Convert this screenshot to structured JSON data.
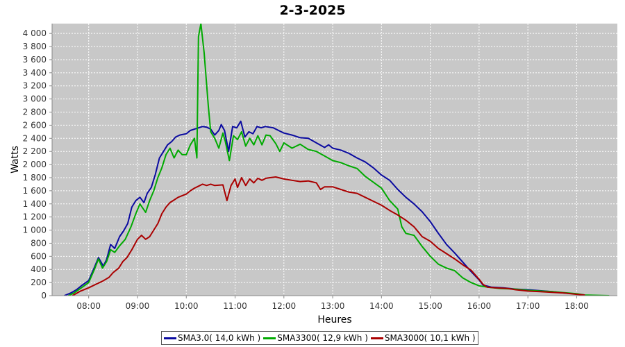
{
  "chart_data": {
    "type": "line",
    "title": "2-3-2025",
    "xlabel": "Heures",
    "ylabel": "Watts",
    "ylim": [
      0,
      4150
    ],
    "xlim": [
      "07:15",
      "18:50"
    ],
    "grid": true,
    "legend_position": "bottom",
    "x_ticks": [
      "08:00",
      "09:00",
      "10:00",
      "11:00",
      "12:00",
      "13:00",
      "14:00",
      "15:00",
      "16:00",
      "17:00",
      "18:00"
    ],
    "y_ticks": [
      "0",
      "200",
      "400",
      "600",
      "800",
      "1 000",
      "1 200",
      "1 400",
      "1 600",
      "1 800",
      "2 000",
      "2 200",
      "2 400",
      "2 600",
      "2 800",
      "3 000",
      "3 200",
      "3 400",
      "3 600",
      "3 800",
      "4 000"
    ],
    "colors": {
      "plot_background": "#c8c8c8",
      "grid": "#ffffff"
    },
    "series": [
      {
        "name": "SMA3.0( 14,0 kWh )",
        "color": "#0a0aa0",
        "points": [
          [
            "07:30",
            0
          ],
          [
            "07:38",
            40
          ],
          [
            "07:45",
            90
          ],
          [
            "07:52",
            160
          ],
          [
            "08:00",
            230
          ],
          [
            "08:07",
            430
          ],
          [
            "08:12",
            580
          ],
          [
            "08:18",
            450
          ],
          [
            "08:22",
            550
          ],
          [
            "08:27",
            780
          ],
          [
            "08:32",
            720
          ],
          [
            "08:38",
            900
          ],
          [
            "08:43",
            990
          ],
          [
            "08:48",
            1100
          ],
          [
            "08:53",
            1350
          ],
          [
            "08:58",
            1450
          ],
          [
            "09:03",
            1500
          ],
          [
            "09:08",
            1420
          ],
          [
            "09:12",
            1560
          ],
          [
            "09:17",
            1650
          ],
          [
            "09:22",
            1850
          ],
          [
            "09:27",
            2100
          ],
          [
            "09:32",
            2200
          ],
          [
            "09:37",
            2300
          ],
          [
            "09:42",
            2350
          ],
          [
            "09:47",
            2420
          ],
          [
            "09:52",
            2450
          ],
          [
            "10:00",
            2470
          ],
          [
            "10:05",
            2520
          ],
          [
            "10:10",
            2540
          ],
          [
            "10:15",
            2560
          ],
          [
            "10:20",
            2580
          ],
          [
            "10:25",
            2570
          ],
          [
            "10:30",
            2540
          ],
          [
            "10:35",
            2450
          ],
          [
            "10:40",
            2520
          ],
          [
            "10:43",
            2610
          ],
          [
            "10:47",
            2520
          ],
          [
            "10:52",
            2200
          ],
          [
            "10:57",
            2580
          ],
          [
            "11:02",
            2560
          ],
          [
            "11:07",
            2660
          ],
          [
            "11:12",
            2420
          ],
          [
            "11:17",
            2500
          ],
          [
            "11:22",
            2470
          ],
          [
            "11:27",
            2580
          ],
          [
            "11:32",
            2560
          ],
          [
            "11:37",
            2580
          ],
          [
            "11:47",
            2560
          ],
          [
            "11:55",
            2510
          ],
          [
            "12:00",
            2480
          ],
          [
            "12:10",
            2450
          ],
          [
            "12:20",
            2410
          ],
          [
            "12:30",
            2400
          ],
          [
            "12:40",
            2330
          ],
          [
            "12:50",
            2260
          ],
          [
            "12:55",
            2300
          ],
          [
            "13:00",
            2250
          ],
          [
            "13:10",
            2220
          ],
          [
            "13:20",
            2170
          ],
          [
            "13:30",
            2100
          ],
          [
            "13:40",
            2040
          ],
          [
            "13:50",
            1950
          ],
          [
            "14:00",
            1840
          ],
          [
            "14:10",
            1760
          ],
          [
            "14:20",
            1620
          ],
          [
            "14:30",
            1500
          ],
          [
            "14:40",
            1400
          ],
          [
            "14:50",
            1280
          ],
          [
            "15:00",
            1130
          ],
          [
            "15:10",
            950
          ],
          [
            "15:20",
            780
          ],
          [
            "15:30",
            650
          ],
          [
            "15:40",
            510
          ],
          [
            "15:50",
            370
          ],
          [
            "16:00",
            240
          ],
          [
            "16:05",
            160
          ],
          [
            "16:15",
            130
          ],
          [
            "16:30",
            120
          ],
          [
            "16:45",
            100
          ],
          [
            "17:00",
            90
          ],
          [
            "17:15",
            75
          ],
          [
            "17:30",
            60
          ],
          [
            "17:45",
            40
          ],
          [
            "18:00",
            25
          ],
          [
            "18:10",
            10
          ]
        ]
      },
      {
        "name": "SMA3300( 12,9 kWh )",
        "color": "#00aa00",
        "points": [
          [
            "07:35",
            0
          ],
          [
            "07:42",
            40
          ],
          [
            "07:50",
            110
          ],
          [
            "08:00",
            200
          ],
          [
            "08:07",
            400
          ],
          [
            "08:12",
            560
          ],
          [
            "08:17",
            420
          ],
          [
            "08:22",
            520
          ],
          [
            "08:27",
            700
          ],
          [
            "08:32",
            660
          ],
          [
            "08:38",
            760
          ],
          [
            "08:45",
            860
          ],
          [
            "08:52",
            1050
          ],
          [
            "08:58",
            1250
          ],
          [
            "09:03",
            1400
          ],
          [
            "09:10",
            1270
          ],
          [
            "09:15",
            1450
          ],
          [
            "09:20",
            1600
          ],
          [
            "09:25",
            1800
          ],
          [
            "09:30",
            1950
          ],
          [
            "09:35",
            2150
          ],
          [
            "09:40",
            2250
          ],
          [
            "09:45",
            2100
          ],
          [
            "09:50",
            2220
          ],
          [
            "09:55",
            2150
          ],
          [
            "10:00",
            2150
          ],
          [
            "10:05",
            2300
          ],
          [
            "10:10",
            2400
          ],
          [
            "10:13",
            2100
          ],
          [
            "10:15",
            3950
          ],
          [
            "10:18",
            4150
          ],
          [
            "10:22",
            3700
          ],
          [
            "10:27",
            2900
          ],
          [
            "10:30",
            2500
          ],
          [
            "10:35",
            2400
          ],
          [
            "10:40",
            2250
          ],
          [
            "10:45",
            2480
          ],
          [
            "10:48",
            2350
          ],
          [
            "10:53",
            2060
          ],
          [
            "10:58",
            2440
          ],
          [
            "11:03",
            2380
          ],
          [
            "11:08",
            2500
          ],
          [
            "11:13",
            2280
          ],
          [
            "11:18",
            2400
          ],
          [
            "11:23",
            2300
          ],
          [
            "11:28",
            2440
          ],
          [
            "11:33",
            2300
          ],
          [
            "11:38",
            2450
          ],
          [
            "11:43",
            2440
          ],
          [
            "11:50",
            2320
          ],
          [
            "11:55",
            2200
          ],
          [
            "12:00",
            2330
          ],
          [
            "12:10",
            2250
          ],
          [
            "12:20",
            2310
          ],
          [
            "12:30",
            2230
          ],
          [
            "12:40",
            2200
          ],
          [
            "12:50",
            2130
          ],
          [
            "13:00",
            2060
          ],
          [
            "13:10",
            2030
          ],
          [
            "13:20",
            1980
          ],
          [
            "13:30",
            1940
          ],
          [
            "13:40",
            1820
          ],
          [
            "13:50",
            1730
          ],
          [
            "14:00",
            1640
          ],
          [
            "14:10",
            1450
          ],
          [
            "14:20",
            1320
          ],
          [
            "14:25",
            1050
          ],
          [
            "14:30",
            950
          ],
          [
            "14:40",
            920
          ],
          [
            "14:50",
            750
          ],
          [
            "15:00",
            600
          ],
          [
            "15:10",
            480
          ],
          [
            "15:20",
            420
          ],
          [
            "15:30",
            380
          ],
          [
            "15:40",
            270
          ],
          [
            "15:50",
            200
          ],
          [
            "16:00",
            150
          ],
          [
            "16:10",
            130
          ],
          [
            "16:25",
            110
          ],
          [
            "16:45",
            100
          ],
          [
            "17:00",
            80
          ],
          [
            "17:30",
            60
          ],
          [
            "17:50",
            40
          ],
          [
            "18:00",
            30
          ],
          [
            "18:10",
            10
          ],
          [
            "18:40",
            0
          ]
        ]
      },
      {
        "name": "SMA3000( 10,1 kWh )",
        "color": "#aa0000",
        "points": [
          [
            "07:40",
            0
          ],
          [
            "07:50",
            70
          ],
          [
            "08:00",
            120
          ],
          [
            "08:10",
            180
          ],
          [
            "08:17",
            220
          ],
          [
            "08:25",
            280
          ],
          [
            "08:30",
            350
          ],
          [
            "08:37",
            420
          ],
          [
            "08:42",
            520
          ],
          [
            "08:47",
            580
          ],
          [
            "08:53",
            700
          ],
          [
            "09:00",
            860
          ],
          [
            "09:05",
            920
          ],
          [
            "09:10",
            860
          ],
          [
            "09:15",
            900
          ],
          [
            "09:20",
            1000
          ],
          [
            "09:25",
            1100
          ],
          [
            "09:30",
            1250
          ],
          [
            "09:35",
            1350
          ],
          [
            "09:40",
            1420
          ],
          [
            "09:45",
            1460
          ],
          [
            "09:50",
            1500
          ],
          [
            "10:00",
            1550
          ],
          [
            "10:05",
            1600
          ],
          [
            "10:10",
            1640
          ],
          [
            "10:15",
            1670
          ],
          [
            "10:20",
            1700
          ],
          [
            "10:25",
            1680
          ],
          [
            "10:30",
            1700
          ],
          [
            "10:35",
            1680
          ],
          [
            "10:45",
            1690
          ],
          [
            "10:50",
            1450
          ],
          [
            "10:55",
            1680
          ],
          [
            "11:00",
            1780
          ],
          [
            "11:03",
            1650
          ],
          [
            "11:08",
            1800
          ],
          [
            "11:13",
            1680
          ],
          [
            "11:18",
            1780
          ],
          [
            "11:23",
            1720
          ],
          [
            "11:28",
            1790
          ],
          [
            "11:33",
            1760
          ],
          [
            "11:38",
            1790
          ],
          [
            "11:43",
            1800
          ],
          [
            "11:50",
            1810
          ],
          [
            "12:00",
            1780
          ],
          [
            "12:10",
            1760
          ],
          [
            "12:20",
            1740
          ],
          [
            "12:30",
            1750
          ],
          [
            "12:40",
            1720
          ],
          [
            "12:45",
            1620
          ],
          [
            "12:50",
            1660
          ],
          [
            "13:00",
            1660
          ],
          [
            "13:10",
            1620
          ],
          [
            "13:20",
            1580
          ],
          [
            "13:30",
            1560
          ],
          [
            "13:40",
            1500
          ],
          [
            "13:50",
            1440
          ],
          [
            "14:00",
            1380
          ],
          [
            "14:10",
            1300
          ],
          [
            "14:20",
            1230
          ],
          [
            "14:30",
            1150
          ],
          [
            "14:40",
            1050
          ],
          [
            "14:50",
            900
          ],
          [
            "15:00",
            830
          ],
          [
            "15:10",
            720
          ],
          [
            "15:20",
            640
          ],
          [
            "15:30",
            560
          ],
          [
            "15:40",
            470
          ],
          [
            "15:50",
            390
          ],
          [
            "16:00",
            250
          ],
          [
            "16:05",
            170
          ],
          [
            "16:10",
            130
          ],
          [
            "16:20",
            120
          ],
          [
            "16:35",
            110
          ],
          [
            "16:45",
            90
          ],
          [
            "17:00",
            70
          ],
          [
            "17:15",
            60
          ],
          [
            "17:30",
            50
          ],
          [
            "17:45",
            40
          ],
          [
            "18:00",
            20
          ],
          [
            "18:10",
            10
          ]
        ]
      }
    ]
  }
}
